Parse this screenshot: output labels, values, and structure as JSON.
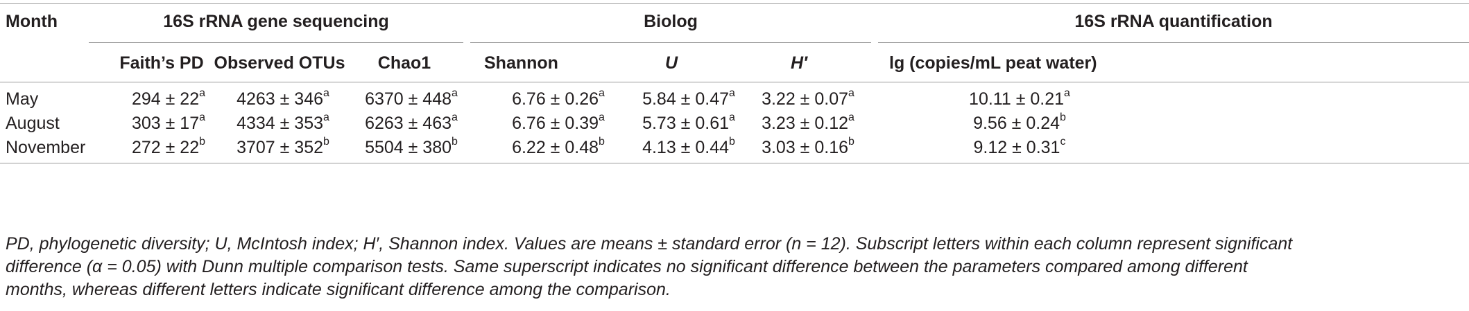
{
  "table": {
    "month_header": "Month",
    "groups": {
      "sequencing": "16S rRNA gene sequencing",
      "biolog": "Biolog",
      "quantification": "16S rRNA quantification"
    },
    "columns": {
      "faith_pd": "Faith’s PD",
      "observed_otus": "Observed OTUs",
      "chao1": "Chao1",
      "shannon": "Shannon",
      "u": "U",
      "h_prime": "H′",
      "lg": "lg (copies/mL peat water)"
    },
    "rows": [
      {
        "month": "May",
        "faith_pd": "294 ± 22",
        "faith_pd_sup": "a",
        "observed_otus": "4263 ± 346",
        "observed_otus_sup": "a",
        "chao1": "6370 ± 448",
        "chao1_sup": "a",
        "shannon": "6.76 ± 0.26",
        "shannon_sup": "a",
        "u": "5.84 ± 0.47",
        "u_sup": "a",
        "h_prime": "3.22 ± 0.07",
        "h_prime_sup": "a",
        "lg": "10.11 ± 0.21",
        "lg_sup": "a"
      },
      {
        "month": "August",
        "faith_pd": "303 ± 17",
        "faith_pd_sup": "a",
        "observed_otus": "4334 ± 353",
        "observed_otus_sup": "a",
        "chao1": "6263 ± 463",
        "chao1_sup": "a",
        "shannon": "6.76 ± 0.39",
        "shannon_sup": "a",
        "u": "5.73 ± 0.61",
        "u_sup": "a",
        "h_prime": "3.23 ± 0.12",
        "h_prime_sup": "a",
        "lg": "9.56 ± 0.24",
        "lg_sup": "b"
      },
      {
        "month": "November",
        "faith_pd": "272 ± 22",
        "faith_pd_sup": "b",
        "observed_otus": "3707 ± 352",
        "observed_otus_sup": "b",
        "chao1": "5504 ± 380",
        "chao1_sup": "b",
        "shannon": "6.22 ± 0.48",
        "shannon_sup": "b",
        "u": "4.13 ± 0.44",
        "u_sup": "b",
        "h_prime": "3.03 ± 0.16",
        "h_prime_sup": "b",
        "lg": "9.12 ± 0.31",
        "lg_sup": "c"
      }
    ]
  },
  "footnote": {
    "line1": "PD, phylogenetic diversity; U, McIntosh index; H′, Shannon index. Values are means ± standard error (n = 12). Subscript letters within each column represent significant",
    "line2": "difference (α = 0.05) with Dunn multiple comparison tests. Same superscript indicates no significant difference between the parameters compared among different",
    "line3": "months, whereas different letters indicate significant difference among the comparison."
  }
}
